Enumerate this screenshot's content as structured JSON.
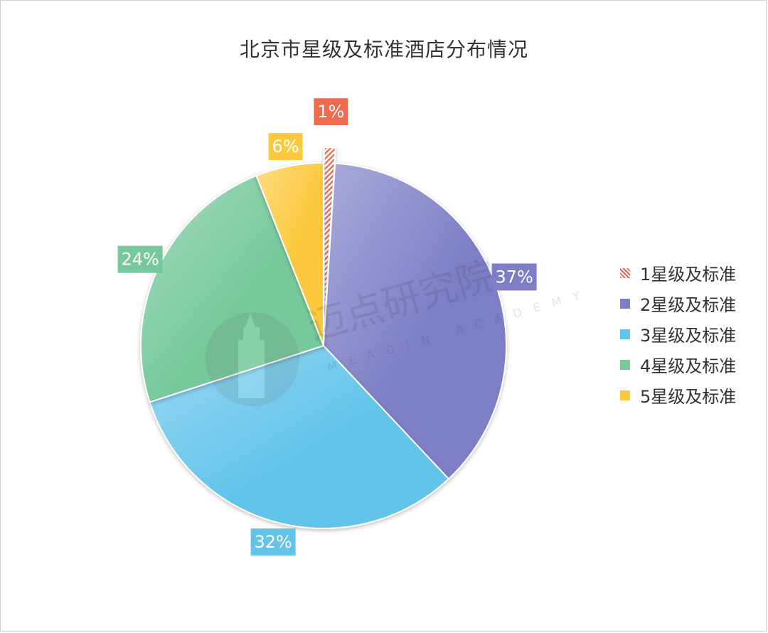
{
  "chart_data": {
    "type": "pie",
    "title": "北京市星级及标准酒店分布情况",
    "slices": [
      {
        "label": "1星级及标准",
        "value": 1,
        "display": "1%",
        "color": "#ef6b4f",
        "exploded": true,
        "pattern": "hatch"
      },
      {
        "label": "2星级及标准",
        "value": 37,
        "display": "37%",
        "color": "#7d7ec6"
      },
      {
        "label": "3星级及标准",
        "value": 32,
        "display": "32%",
        "color": "#63c4ea"
      },
      {
        "label": "4星级及标准",
        "value": 24,
        "display": "24%",
        "color": "#77c99c"
      },
      {
        "label": "5星级及标准",
        "value": 6,
        "display": "6%",
        "color": "#fcc93d"
      }
    ],
    "legend_position": "right"
  },
  "watermark": {
    "text_cn": "迈点研究院",
    "text_en": "MEADIN ACADEMY"
  }
}
